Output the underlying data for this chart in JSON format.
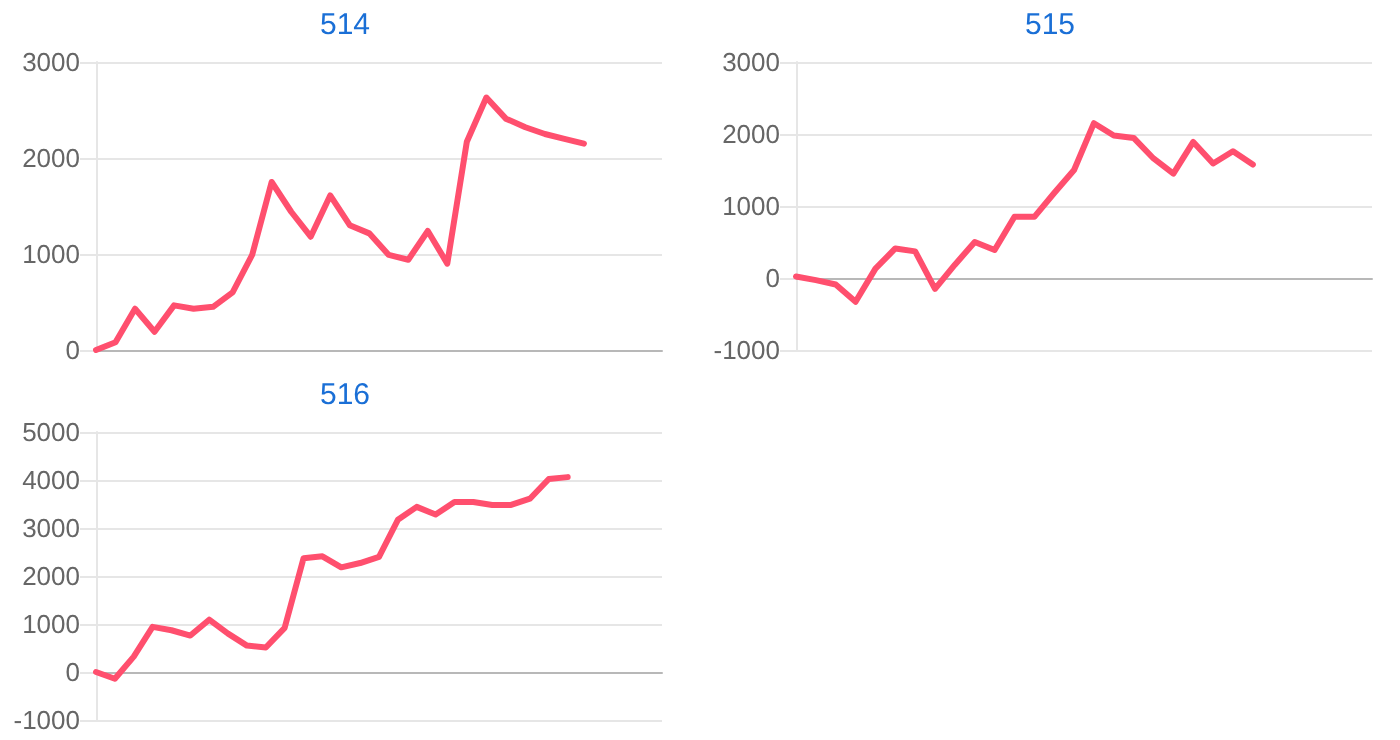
{
  "chart_data": [
    {
      "type": "line",
      "title": "514",
      "categories": [
        null,
        null,
        null,
        null,
        null,
        null,
        null,
        null,
        null,
        null,
        null,
        null,
        null,
        null,
        null,
        null,
        null,
        null,
        null,
        null,
        null,
        null,
        null,
        null,
        null,
        null,
        null,
        null,
        null,
        null
      ],
      "series": [
        {
          "color": "#ff4f6e",
          "values": [
            0,
            80,
            430,
            190,
            465,
            430,
            450,
            600,
            990,
            1750,
            1440,
            1180,
            1610,
            1300,
            1215,
            990,
            940,
            1240,
            900,
            2170,
            2630,
            2410,
            2320,
            2250,
            2200,
            2150,
            null,
            null,
            null,
            null
          ]
        }
      ],
      "ylim": [
        0,
        3000
      ],
      "yticks": [
        0,
        1000,
        2000,
        3000
      ],
      "grid": "y",
      "tick_labels": "y",
      "marker": "none"
    },
    {
      "type": "line",
      "title": "515",
      "categories": [
        null,
        null,
        null,
        null,
        null,
        null,
        null,
        null,
        null,
        null,
        null,
        null,
        null,
        null,
        null,
        null,
        null,
        null,
        null,
        null,
        null,
        null,
        null,
        null,
        null,
        null,
        null,
        null,
        null,
        null
      ],
      "series": [
        {
          "color": "#ff4f6e",
          "values": [
            20,
            -30,
            -90,
            -330,
            130,
            410,
            370,
            -150,
            185,
            500,
            390,
            850,
            850,
            1180,
            1500,
            2150,
            1980,
            1945,
            1660,
            1450,
            1890,
            1590,
            1760,
            1575,
            null,
            null,
            null,
            null,
            null,
            null
          ]
        }
      ],
      "ylim": [
        -1000,
        3000
      ],
      "yticks": [
        -1000,
        0,
        1000,
        2000,
        3000
      ],
      "grid": "y",
      "tick_labels": "y",
      "marker": "none"
    },
    {
      "type": "line",
      "title": "516",
      "categories": [
        null,
        null,
        null,
        null,
        null,
        null,
        null,
        null,
        null,
        null,
        null,
        null,
        null,
        null,
        null,
        null,
        null,
        null,
        null,
        null,
        null,
        null,
        null,
        null,
        null,
        null,
        null,
        null,
        null,
        null,
        null
      ],
      "series": [
        {
          "color": "#ff4f6e",
          "values": [
            0,
            -140,
            320,
            940,
            870,
            760,
            1090,
            800,
            550,
            510,
            920,
            2370,
            2410,
            2180,
            2270,
            2400,
            3170,
            3440,
            3280,
            3540,
            3540,
            3480,
            3480,
            3610,
            4020,
            4060,
            null,
            null,
            null,
            null,
            null
          ]
        }
      ],
      "ylim": [
        -1000,
        5000
      ],
      "yticks": [
        -1000,
        0,
        1000,
        2000,
        3000,
        4000,
        5000
      ],
      "grid": "y",
      "tick_labels": "y",
      "marker": "none"
    }
  ]
}
